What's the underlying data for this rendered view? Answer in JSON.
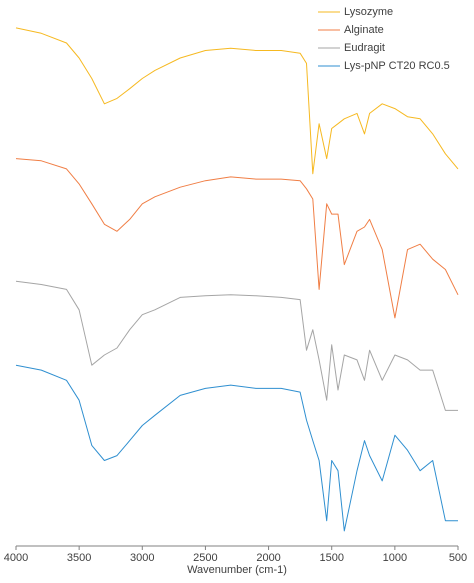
{
  "chart_data": {
    "type": "line",
    "x_label": "Wavenumber (cm-1)",
    "x": [
      4000,
      3800,
      3600,
      3500,
      3400,
      3300,
      3200,
      3100,
      3000,
      2900,
      2700,
      2500,
      2300,
      2100,
      1900,
      1750,
      1700,
      1650,
      1600,
      1540,
      1500,
      1450,
      1400,
      1300,
      1240,
      1200,
      1100,
      1000,
      900,
      800,
      700,
      600,
      500
    ],
    "xlim": [
      4000,
      500
    ],
    "xticks": [
      4000,
      3500,
      3000,
      2500,
      2000,
      1500,
      1000,
      500
    ],
    "ylim": [
      0,
      100
    ],
    "legend": "top-right",
    "series": [
      {
        "name": "Lysozyme",
        "color": "#f6b921",
        "values": [
          96.3,
          95.3,
          93.5,
          90.7,
          86.9,
          82.2,
          83.2,
          85.0,
          86.9,
          88.4,
          90.7,
          92.1,
          92.5,
          92.1,
          92.1,
          91.6,
          89.7,
          69.2,
          78.5,
          72.0,
          77.6,
          78.5,
          79.4,
          80.4,
          76.6,
          80.4,
          82.2,
          81.3,
          79.8,
          79.4,
          76.6,
          72.9,
          70.1
        ]
      },
      {
        "name": "Alginate",
        "color": "#f07e45",
        "values": [
          72.0,
          71.6,
          70.1,
          67.3,
          63.6,
          59.8,
          58.5,
          60.7,
          63.6,
          64.9,
          66.7,
          67.9,
          68.6,
          68.2,
          68.2,
          67.9,
          66.4,
          64.5,
          47.7,
          63.6,
          61.7,
          61.7,
          52.3,
          58.5,
          59.3,
          60.7,
          55.1,
          42.4,
          55.1,
          56.1,
          53.3,
          51.4,
          46.7
        ]
      },
      {
        "name": "Eudragit",
        "color": "#a5a5a5",
        "values": [
          49.2,
          48.6,
          47.7,
          43.9,
          33.6,
          35.5,
          36.8,
          40.2,
          43.0,
          43.9,
          46.2,
          46.5,
          46.7,
          46.5,
          46.2,
          45.8,
          36.4,
          40.2,
          34.6,
          27.1,
          37.4,
          29.0,
          35.5,
          34.6,
          30.8,
          36.4,
          30.8,
          35.5,
          34.6,
          32.7,
          32.7,
          25.2,
          25.2
        ]
      },
      {
        "name": "Lys-pNP CT20 RC0.5",
        "color": "#2f8fd0",
        "values": [
          33.6,
          32.7,
          30.8,
          27.1,
          18.7,
          15.9,
          16.8,
          19.6,
          22.4,
          24.3,
          28.0,
          29.3,
          29.9,
          29.3,
          29.3,
          28.6,
          23.4,
          19.6,
          15.9,
          4.7,
          15.9,
          14.0,
          2.8,
          14.0,
          19.6,
          16.8,
          12.1,
          20.6,
          17.8,
          14.0,
          15.9,
          4.7,
          4.7
        ]
      }
    ]
  }
}
